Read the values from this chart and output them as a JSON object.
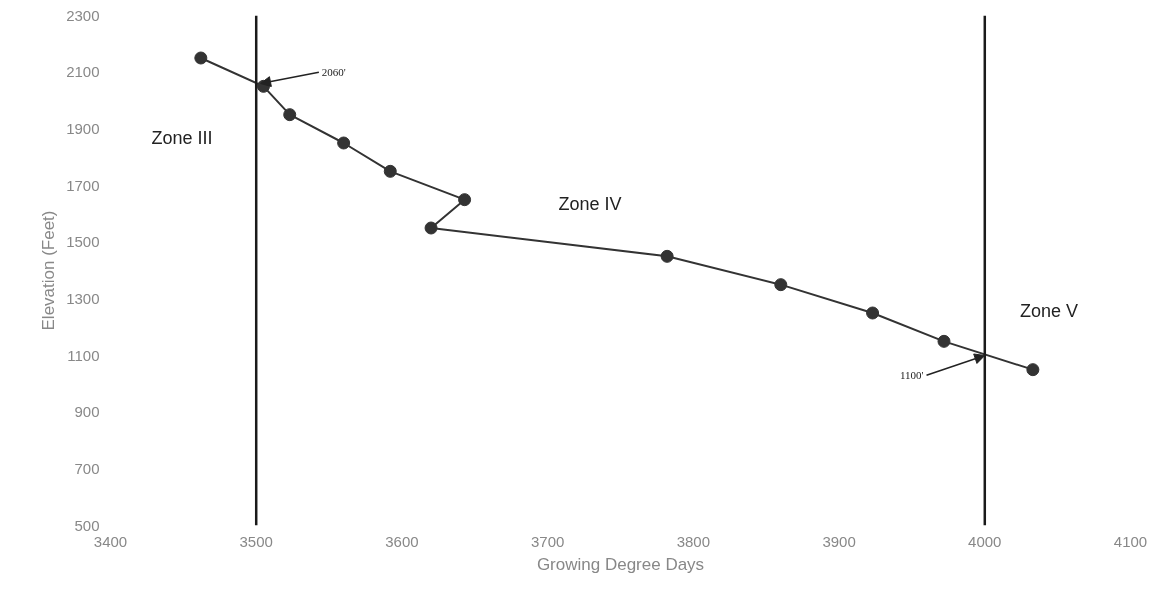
{
  "chart_data": {
    "type": "line",
    "xlabel": "Growing Degree Days",
    "ylabel": "Elevation (Feet)",
    "x": [
      3462,
      3505,
      3523,
      3560,
      3592,
      3643,
      3620,
      3782,
      3860,
      3923,
      3972,
      4033
    ],
    "series": [
      {
        "color": "#333333",
        "values": [
          2150,
          2050,
          1950,
          1850,
          1750,
          1650,
          1550,
          1450,
          1350,
          1250,
          1150,
          1050
        ]
      }
    ],
    "marker": "circle",
    "line_style": "solid",
    "grid": false,
    "xlim": [
      3400,
      4100
    ],
    "xticks": [
      3400,
      3500,
      3600,
      3700,
      3800,
      3900,
      4000,
      4100
    ],
    "ylim": [
      500,
      2300
    ],
    "yticks": [
      500,
      700,
      900,
      1100,
      1300,
      1500,
      1700,
      1900,
      2100,
      2300
    ],
    "ref_lines": [
      {
        "axis": "x",
        "value": 3500,
        "color": "#1a1a1a"
      },
      {
        "axis": "x",
        "value": 4000,
        "color": "#1a1a1a"
      }
    ],
    "annotations": [
      "Zone III",
      "Zone IV",
      "Zone V",
      {
        "text": "2060'",
        "x": 3503,
        "y": 2060
      },
      {
        "text": "1100'",
        "x": 4000,
        "y": 1100
      }
    ]
  }
}
